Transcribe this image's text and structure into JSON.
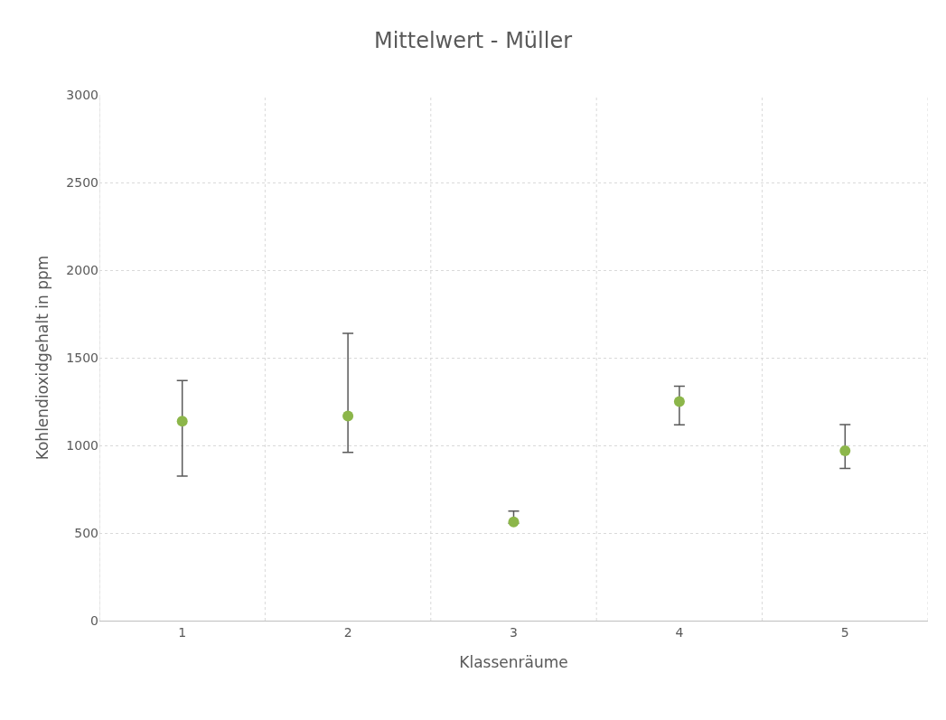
{
  "chart_data": {
    "type": "scatter",
    "title": "Mittelwert - Müller",
    "xlabel": "Klassenräume",
    "ylabel": "Kohlendioxidgehalt in ppm",
    "categories": [
      "1",
      "2",
      "3",
      "4",
      "5"
    ],
    "series": [
      {
        "color": "#8cb64a",
        "values": [
          1138,
          1167,
          563,
          1250,
          969
        ],
        "errors": [
          [
            825,
            1370
          ],
          [
            960,
            1639
          ],
          [
            555,
            625
          ],
          [
            1117,
            1337
          ],
          [
            868,
            1118
          ]
        ]
      }
    ],
    "ylim": [
      0,
      3000
    ],
    "yticks": [
      0,
      500,
      1000,
      1500,
      2000,
      2500,
      3000
    ],
    "grid": true,
    "marker": "circle",
    "legend": false
  }
}
